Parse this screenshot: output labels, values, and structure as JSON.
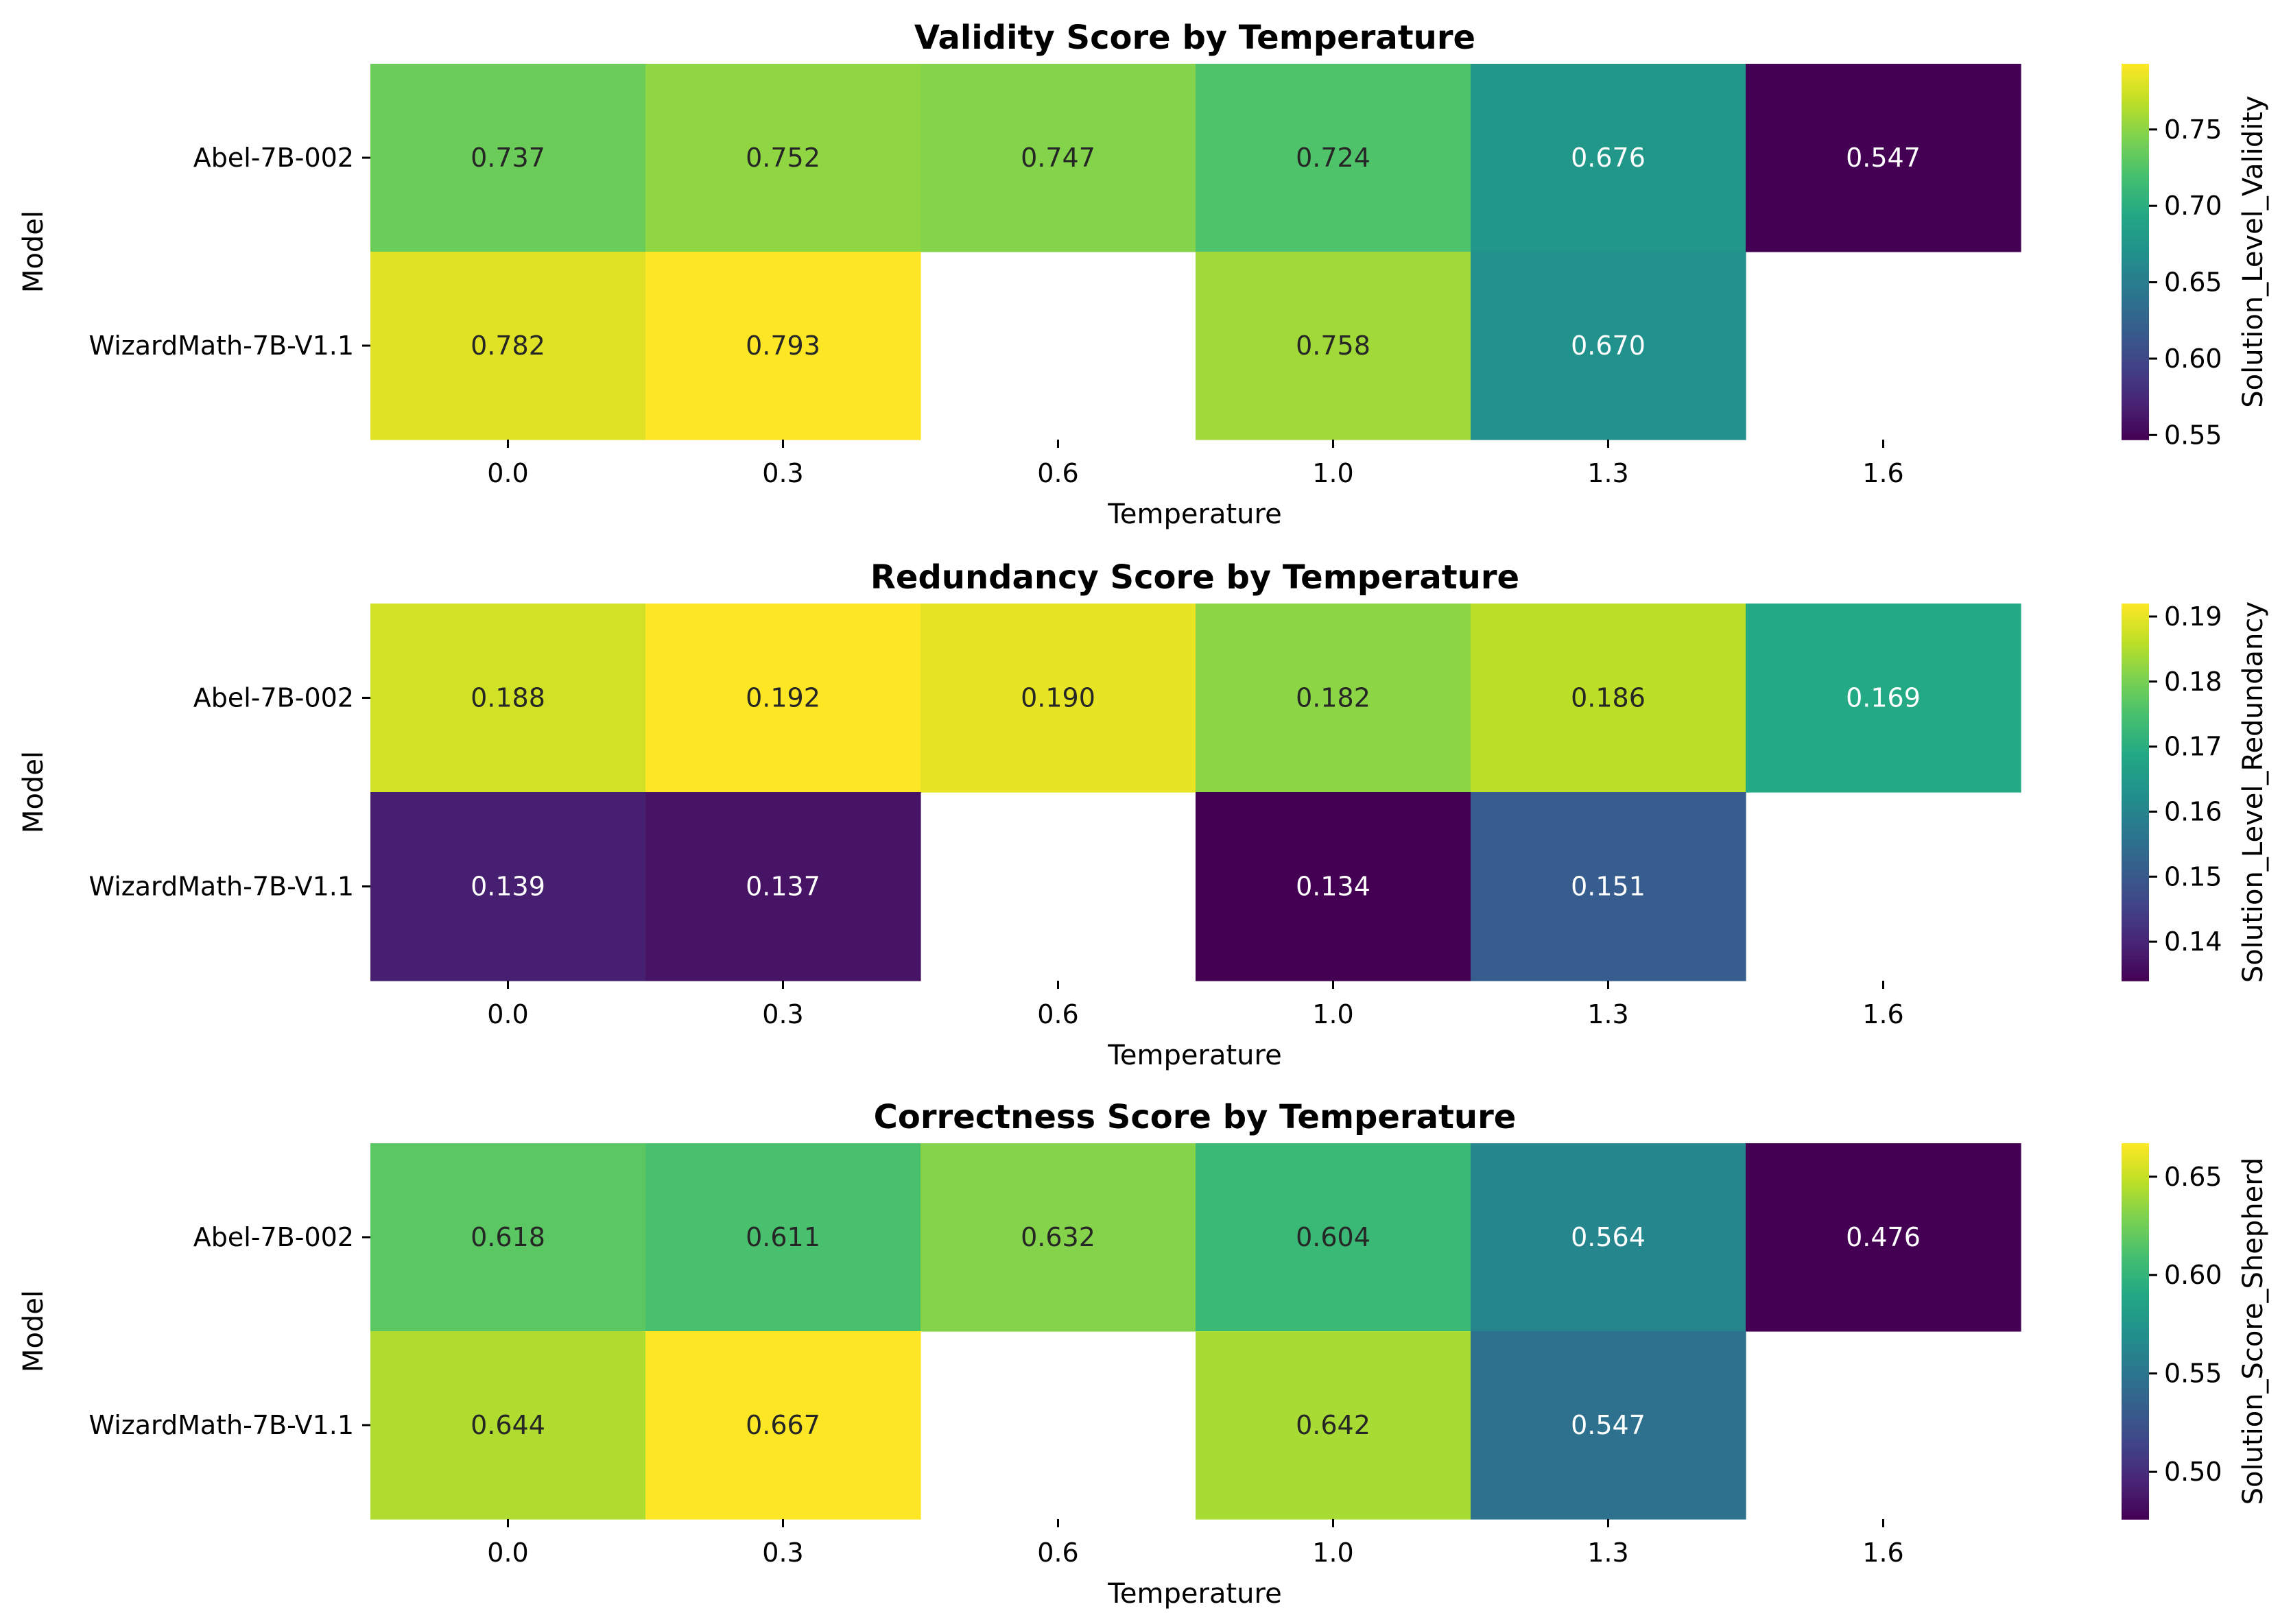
{
  "chart_data": [
    {
      "type": "heatmap",
      "title": "Validity Score by Temperature",
      "xlabel": "Temperature",
      "ylabel": "Model",
      "x_categories": [
        "0.0",
        "0.3",
        "0.6",
        "1.0",
        "1.3",
        "1.6"
      ],
      "y_categories": [
        "Abel-7B-002",
        "WizardMath-7B-V1.1"
      ],
      "values": [
        [
          0.737,
          0.752,
          0.747,
          0.724,
          0.676,
          0.547
        ],
        [
          0.782,
          0.793,
          null,
          0.758,
          0.67,
          null
        ]
      ],
      "colorbar": {
        "label": "Solution_Level_Validity",
        "range": [
          0.547,
          0.793
        ],
        "ticks": [
          "0.55",
          "0.60",
          "0.65",
          "0.70",
          "0.75"
        ],
        "colormap": "viridis"
      }
    },
    {
      "type": "heatmap",
      "title": "Redundancy Score by Temperature",
      "xlabel": "Temperature",
      "ylabel": "Model",
      "x_categories": [
        "0.0",
        "0.3",
        "0.6",
        "1.0",
        "1.3",
        "1.6"
      ],
      "y_categories": [
        "Abel-7B-002",
        "WizardMath-7B-V1.1"
      ],
      "values": [
        [
          0.188,
          0.192,
          0.19,
          0.182,
          0.186,
          0.169
        ],
        [
          0.139,
          0.137,
          null,
          0.134,
          0.151,
          null
        ]
      ],
      "colorbar": {
        "label": "Solution_Level_Redundancy",
        "range": [
          0.134,
          0.192
        ],
        "ticks": [
          "0.14",
          "0.15",
          "0.16",
          "0.17",
          "0.18",
          "0.19"
        ],
        "colormap": "viridis"
      }
    },
    {
      "type": "heatmap",
      "title": "Correctness Score by Temperature",
      "xlabel": "Temperature",
      "ylabel": "Model",
      "x_categories": [
        "0.0",
        "0.3",
        "0.6",
        "1.0",
        "1.3",
        "1.6"
      ],
      "y_categories": [
        "Abel-7B-002",
        "WizardMath-7B-V1.1"
      ],
      "values": [
        [
          0.618,
          0.611,
          0.632,
          0.604,
          0.564,
          0.476
        ],
        [
          0.644,
          0.667,
          null,
          0.642,
          0.547,
          null
        ]
      ],
      "colorbar": {
        "label": "Solution_Score_Shepherd",
        "range": [
          0.476,
          0.667
        ],
        "ticks": [
          "0.50",
          "0.55",
          "0.60",
          "0.65"
        ],
        "colormap": "viridis"
      }
    }
  ]
}
